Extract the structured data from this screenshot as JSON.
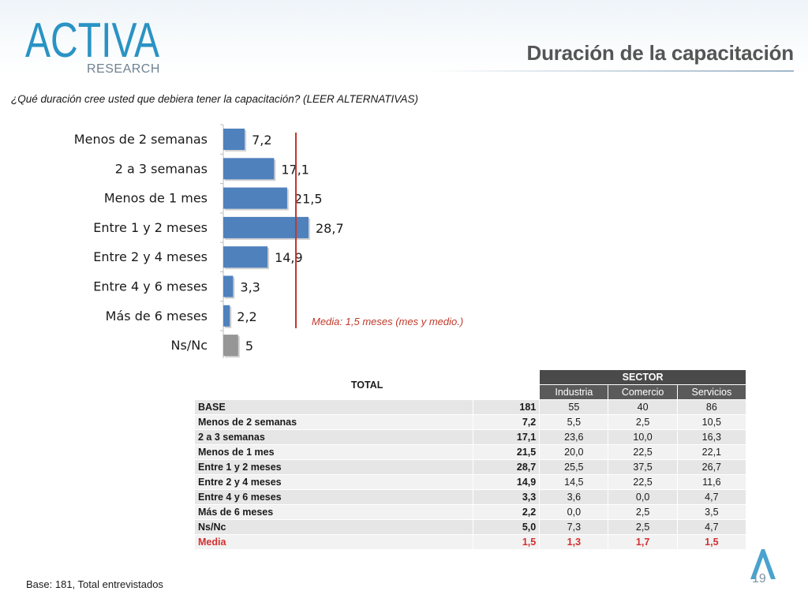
{
  "header": {
    "logo_text_main": "ACTIVA",
    "logo_text_sub": "RESEARCH",
    "title": "Duración de la capacitación"
  },
  "question": "¿Qué duración cree usted que debiera tener la capacitación? (LEER ALTERNATIVAS)",
  "chart_data": {
    "type": "bar",
    "orientation": "horizontal",
    "categories": [
      "Menos de 2 semanas",
      "2 a 3 semanas",
      "Menos de 1 mes",
      "Entre 1 y 2 meses",
      "Entre 2 y 4 meses",
      "Entre 4 y 6 meses",
      "Más de 6 meses",
      "Ns/Nc"
    ],
    "values": [
      7.2,
      17.1,
      21.5,
      28.7,
      14.9,
      3.3,
      2.2,
      5.0
    ],
    "value_labels": [
      "7,2",
      "17,1",
      "21,5",
      "28,7",
      "14,9",
      "3,3",
      "2,2",
      "5"
    ],
    "colors": [
      "#4f81bd",
      "#4f81bd",
      "#4f81bd",
      "#4f81bd",
      "#4f81bd",
      "#4f81bd",
      "#4f81bd",
      "#969696"
    ],
    "xlim": [
      0,
      30
    ],
    "reference_line_value": 24.7,
    "reference_line_color": "#c0392b",
    "annotation": "Media: 1,5 meses  (mes y  medio.)",
    "title": "",
    "xlabel": "",
    "ylabel": ""
  },
  "table": {
    "total_header": "TOTAL",
    "sector_header": "SECTOR",
    "sub_headers": [
      "Industria",
      "Comercio",
      "Servicios"
    ],
    "rows": [
      {
        "label": "BASE",
        "total": "181",
        "industria": "55",
        "comercio": "40",
        "servicios": "86"
      },
      {
        "label": "Menos de 2 semanas",
        "total": "7,2",
        "industria": "5,5",
        "comercio": "2,5",
        "servicios": "10,5"
      },
      {
        "label": "2 a 3 semanas",
        "total": "17,1",
        "industria": "23,6",
        "comercio": "10,0",
        "servicios": "16,3"
      },
      {
        "label": "Menos de 1 mes",
        "total": "21,5",
        "industria": "20,0",
        "comercio": "22,5",
        "servicios": "22,1"
      },
      {
        "label": "Entre 1 y 2 meses",
        "total": "28,7",
        "industria": "25,5",
        "comercio": "37,5",
        "servicios": "26,7"
      },
      {
        "label": "Entre 2 y 4 meses",
        "total": "14,9",
        "industria": "14,5",
        "comercio": "22,5",
        "servicios": "11,6"
      },
      {
        "label": "Entre 4 y 6 meses",
        "total": "3,3",
        "industria": "3,6",
        "comercio": "0,0",
        "servicios": "4,7"
      },
      {
        "label": "Más de 6 meses",
        "total": "2,2",
        "industria": "0,0",
        "comercio": "2,5",
        "servicios": "3,5"
      },
      {
        "label": "Ns/Nc",
        "total": "5,0",
        "industria": "7,3",
        "comercio": "2,5",
        "servicios": "4,7"
      },
      {
        "label": "Media",
        "total": "1,5",
        "industria": "1,3",
        "comercio": "1,7",
        "servicios": "1,5"
      }
    ],
    "media_color": "#d32f2f"
  },
  "footer": {
    "base_note": "Base: 181, Total entrevistados",
    "page_number": "19"
  }
}
